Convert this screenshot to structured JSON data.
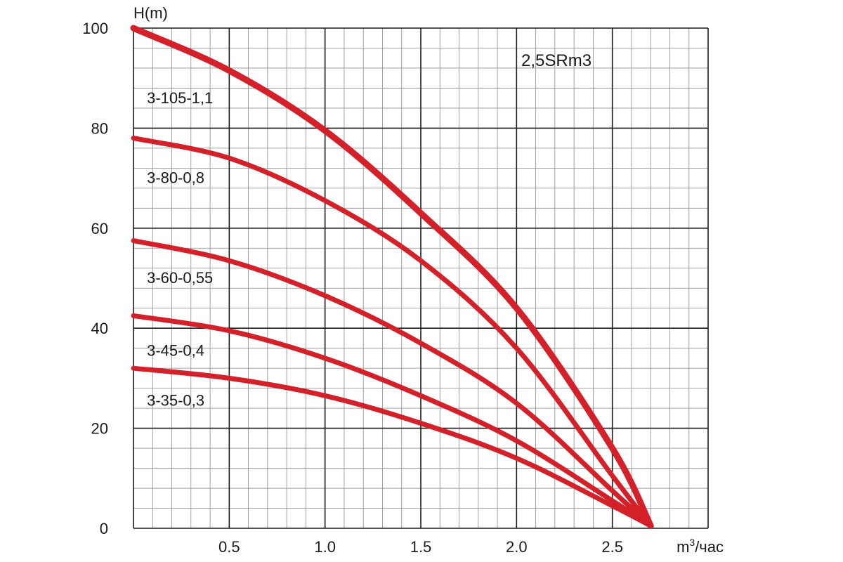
{
  "chart_data": {
    "type": "line",
    "title": "2,5SRm3",
    "ylabel": "H(m)",
    "xlabel_main": "m",
    "xlabel_sup": "3",
    "xlabel_rest": "/час",
    "xlim": [
      0,
      3.0
    ],
    "ylim": [
      0,
      100
    ],
    "x_ticks": [
      {
        "value": 0.5,
        "label": "0.5"
      },
      {
        "value": 1.0,
        "label": "1.0"
      },
      {
        "value": 1.5,
        "label": "1.5"
      },
      {
        "value": 2.0,
        "label": "2.0"
      },
      {
        "value": 2.5,
        "label": "2.5"
      }
    ],
    "y_ticks": [
      {
        "value": 0,
        "label": "0"
      },
      {
        "value": 20,
        "label": "20"
      },
      {
        "value": 40,
        "label": "40"
      },
      {
        "value": 60,
        "label": "60"
      },
      {
        "value": 80,
        "label": "80"
      },
      {
        "value": 100,
        "label": "100"
      }
    ],
    "grid": {
      "minor_x_step": 0.1,
      "minor_y_step": 4,
      "major_x_step": 0.5,
      "major_y_step": 20
    },
    "line_color": "#d42129",
    "series": [
      {
        "name": "3-105-1,1",
        "label_x": 0.07,
        "label_y": 85,
        "points": [
          [
            0,
            100
          ],
          [
            0.5,
            91.5
          ],
          [
            1.0,
            79.5
          ],
          [
            1.5,
            63
          ],
          [
            2.0,
            44
          ],
          [
            2.5,
            16
          ],
          [
            2.7,
            0.5
          ]
        ]
      },
      {
        "name": "3-80-0,8",
        "label_x": 0.07,
        "label_y": 69,
        "points": [
          [
            0,
            78
          ],
          [
            0.5,
            74
          ],
          [
            1.0,
            65.5
          ],
          [
            1.5,
            53.5
          ],
          [
            2.0,
            36
          ],
          [
            2.5,
            10.5
          ],
          [
            2.7,
            0.5
          ]
        ]
      },
      {
        "name": "3-60-0,55",
        "label_x": 0.07,
        "label_y": 49,
        "points": [
          [
            0,
            57.5
          ],
          [
            0.5,
            53.5
          ],
          [
            1.0,
            46.5
          ],
          [
            1.5,
            37
          ],
          [
            2.0,
            25
          ],
          [
            2.5,
            7.5
          ],
          [
            2.7,
            0.5
          ]
        ]
      },
      {
        "name": "3-45-0,4",
        "label_x": 0.07,
        "label_y": 34.5,
        "points": [
          [
            0,
            42.5
          ],
          [
            0.5,
            39.5
          ],
          [
            1.0,
            34
          ],
          [
            1.5,
            26.5
          ],
          [
            2.0,
            17.5
          ],
          [
            2.5,
            5.5
          ],
          [
            2.7,
            0.5
          ]
        ]
      },
      {
        "name": "3-35-0,3",
        "label_x": 0.07,
        "label_y": 24.5,
        "points": [
          [
            0,
            32
          ],
          [
            0.5,
            30
          ],
          [
            1.0,
            26.5
          ],
          [
            1.5,
            21
          ],
          [
            2.0,
            14
          ],
          [
            2.5,
            4.5
          ],
          [
            2.7,
            0.5
          ]
        ]
      }
    ]
  }
}
